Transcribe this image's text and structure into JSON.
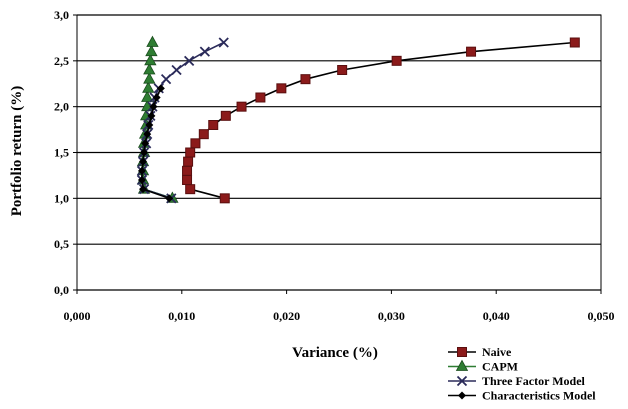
{
  "chart_data": {
    "type": "line",
    "xlabel": "Variance (%)",
    "ylabel": "Portfolio return (%)",
    "xlim": [
      0,
      0.05
    ],
    "ylim": [
      0,
      3.0
    ],
    "x_ticks": [
      "0,000",
      "0,010",
      "0,020",
      "0,030",
      "0,040",
      "0,050"
    ],
    "x_tick_values": [
      0,
      0.01,
      0.02,
      0.03,
      0.04,
      0.05
    ],
    "y_ticks": [
      "0,0",
      "0,5",
      "1,0",
      "1,5",
      "2,0",
      "2,5",
      "3,0"
    ],
    "y_tick_values": [
      0,
      0.5,
      1.0,
      1.5,
      2.0,
      2.5,
      3.0
    ],
    "grid": "horizontal",
    "legend_position": "bottom-right",
    "series": [
      {
        "name": "Naive",
        "color": "#8B1A1A",
        "marker": "square",
        "points": [
          [
            0.0141,
            1.0
          ],
          [
            0.0108,
            1.1
          ],
          [
            0.0105,
            1.2
          ],
          [
            0.0105,
            1.3
          ],
          [
            0.0106,
            1.4
          ],
          [
            0.0108,
            1.5
          ],
          [
            0.0113,
            1.6
          ],
          [
            0.0121,
            1.7
          ],
          [
            0.013,
            1.8
          ],
          [
            0.0142,
            1.9
          ],
          [
            0.0157,
            2.0
          ],
          [
            0.0175,
            2.1
          ],
          [
            0.0195,
            2.2
          ],
          [
            0.0218,
            2.3
          ],
          [
            0.0253,
            2.4
          ],
          [
            0.0305,
            2.5
          ],
          [
            0.0376,
            2.6
          ],
          [
            0.0475,
            2.7
          ]
        ]
      },
      {
        "name": "CAPM",
        "color": "#2E7D32",
        "marker": "triangle",
        "points": [
          [
            0.0091,
            1.0
          ],
          [
            0.0064,
            1.1
          ],
          [
            0.0063,
            1.2
          ],
          [
            0.0063,
            1.3
          ],
          [
            0.0063,
            1.4
          ],
          [
            0.0064,
            1.5
          ],
          [
            0.0064,
            1.6
          ],
          [
            0.0065,
            1.7
          ],
          [
            0.0066,
            1.8
          ],
          [
            0.0066,
            1.9
          ],
          [
            0.0067,
            2.0
          ],
          [
            0.0067,
            2.1
          ],
          [
            0.0068,
            2.2
          ],
          [
            0.0069,
            2.3
          ],
          [
            0.0069,
            2.4
          ],
          [
            0.007,
            2.5
          ],
          [
            0.0071,
            2.6
          ],
          [
            0.0072,
            2.7
          ]
        ]
      },
      {
        "name": "Three Factor Model",
        "color": "#2B2B5A",
        "marker": "x",
        "points": [
          [
            0.009,
            1.0
          ],
          [
            0.0064,
            1.1
          ],
          [
            0.0062,
            1.2
          ],
          [
            0.0062,
            1.3
          ],
          [
            0.0063,
            1.4
          ],
          [
            0.0064,
            1.5
          ],
          [
            0.0066,
            1.6
          ],
          [
            0.0067,
            1.7
          ],
          [
            0.0068,
            1.8
          ],
          [
            0.007,
            1.9
          ],
          [
            0.0072,
            2.0
          ],
          [
            0.0074,
            2.1
          ],
          [
            0.0078,
            2.2
          ],
          [
            0.0085,
            2.3
          ],
          [
            0.0095,
            2.4
          ],
          [
            0.0107,
            2.5
          ],
          [
            0.0122,
            2.6
          ],
          [
            0.014,
            2.7
          ]
        ]
      },
      {
        "name": "Characteristics Model",
        "color": "#000000",
        "marker": "diamond",
        "points": [
          [
            0.0088,
            1.0
          ],
          [
            0.0063,
            1.1
          ],
          [
            0.0062,
            1.2
          ],
          [
            0.0062,
            1.3
          ],
          [
            0.0063,
            1.4
          ],
          [
            0.0064,
            1.5
          ],
          [
            0.0065,
            1.6
          ],
          [
            0.0067,
            1.7
          ],
          [
            0.0069,
            1.8
          ],
          [
            0.0071,
            1.9
          ],
          [
            0.0073,
            2.0
          ],
          [
            0.0076,
            2.1
          ],
          [
            0.008,
            2.2
          ]
        ]
      }
    ]
  }
}
